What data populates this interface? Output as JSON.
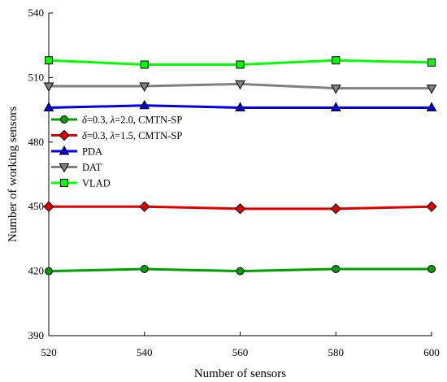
{
  "chart_data": {
    "type": "line",
    "title": "",
    "xlabel": "Number of sensors",
    "ylabel": "Number of working sensors",
    "x": [
      520,
      540,
      560,
      580,
      600
    ],
    "xlim": [
      520,
      600
    ],
    "xticks": [
      "520",
      "540",
      "560",
      "580",
      "600"
    ],
    "ylim": [
      390,
      540
    ],
    "yticks": [
      "390",
      "420",
      "450",
      "480",
      "510",
      "540"
    ],
    "grid": false,
    "legend": "center-left",
    "series": [
      {
        "name_parts": [
          "δ",
          "=0.3, ",
          "λ",
          "=2.0, CMTN-SP"
        ],
        "values": [
          420,
          421,
          420,
          421,
          421
        ],
        "color": "#00a000",
        "marker": "circle"
      },
      {
        "name_parts": [
          "δ",
          "=0.3, ",
          "λ",
          "=1.5, CMTN-SP"
        ],
        "values": [
          450,
          450,
          449,
          449,
          450
        ],
        "color": "#e00000",
        "marker": "diamond"
      },
      {
        "name": "PDA",
        "values": [
          496,
          497,
          496,
          496,
          496
        ],
        "color": "#0000e0",
        "marker": "triangle-up"
      },
      {
        "name": "DAT",
        "values": [
          506,
          506,
          507,
          505,
          505
        ],
        "color": "#808080",
        "marker": "triangle-down"
      },
      {
        "name": "VLAD",
        "values": [
          518,
          516,
          516,
          518,
          517
        ],
        "color": "#00ff00",
        "marker": "square"
      }
    ]
  }
}
